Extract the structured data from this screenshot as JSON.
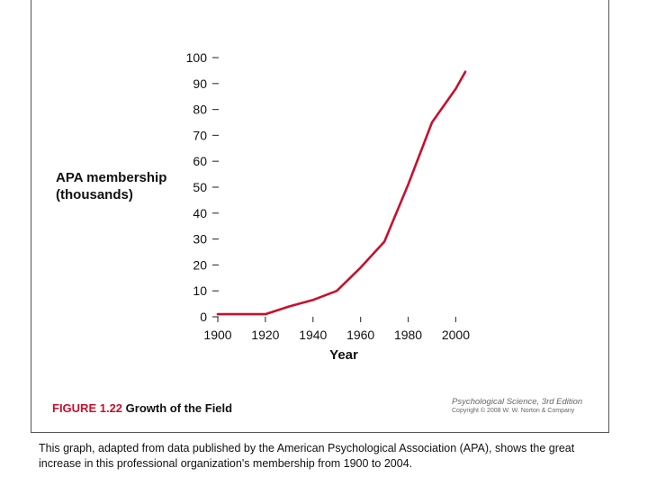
{
  "chart_data": {
    "type": "line",
    "title": "",
    "ylabel_lines": [
      "APA membership",
      "(thousands)"
    ],
    "xlabel": "Year",
    "xlim": [
      1900,
      2004
    ],
    "ylim": [
      0,
      100
    ],
    "x_ticks": [
      1900,
      1920,
      1940,
      1960,
      1980,
      2000
    ],
    "y_ticks": [
      0,
      10,
      20,
      30,
      40,
      50,
      60,
      70,
      80,
      90,
      100
    ],
    "grid": false,
    "series": [
      {
        "color": "#c8102e",
        "x": [
          1900,
          1920,
          1930,
          1940,
          1950,
          1960,
          1970,
          1980,
          1990,
          2000,
          2004
        ],
        "y": [
          1,
          1,
          4,
          6.5,
          10,
          19,
          29,
          51,
          75,
          88,
          94.5
        ]
      }
    ]
  },
  "caption": {
    "figure_number": "FIGURE 1.22",
    "figure_title": "Growth of the Field",
    "credit_book": "Psychological Science, 3rd Edition",
    "credit_copyright": "Copyright © 2008 W. W. Norton & Company"
  },
  "description": "This graph, adapted from data published by the American Psychological Association (APA), shows the great increase in this professional organization's membership from 1900 to 2004."
}
